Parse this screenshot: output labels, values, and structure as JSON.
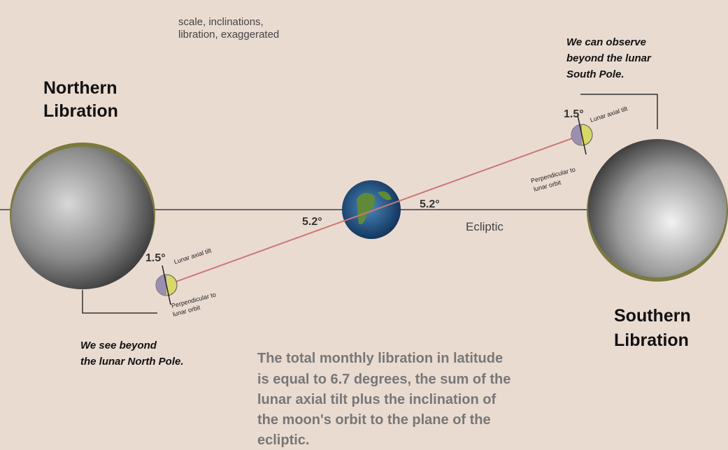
{
  "note": [
    "scale, inclinations,",
    "libration, exaggerated"
  ],
  "north": {
    "title": [
      "Northern",
      "Libration"
    ],
    "caption": [
      "We see beyond",
      "the lunar North Pole."
    ],
    "tilt": "1.5°",
    "axial": "Lunar axial tilt",
    "perp": [
      "Perpendicular to",
      "lunar orbit"
    ],
    "inclination": "5.2°"
  },
  "south": {
    "title": [
      "Southern",
      "Libration"
    ],
    "caption": [
      "We can observe",
      "beyond the lunar",
      "South Pole."
    ],
    "tilt": "1.5°",
    "axial": "Lunar axial tilt",
    "perp": [
      "Perpendicular to",
      "lunar orbit"
    ],
    "inclination": "5.2°"
  },
  "ecliptic": "Ecliptic",
  "summary": [
    "The total monthly libration in latitude",
    "is equal to 6.7 degrees, the sum of the",
    "lunar axial tilt plus the inclination of",
    "the moon's orbit to the plane of the",
    "ecliptic."
  ]
}
